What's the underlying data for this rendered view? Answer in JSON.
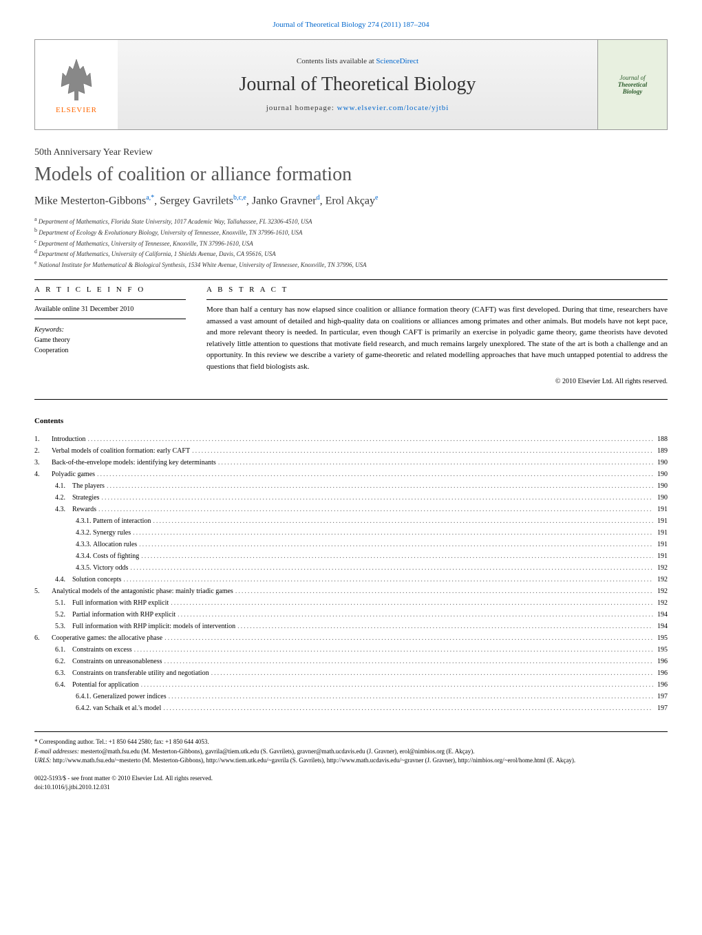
{
  "top_link": "Journal of Theoretical Biology 274 (2011) 187–204",
  "header": {
    "contents_text": "Contents lists available at ",
    "contents_link": "ScienceDirect",
    "journal_title": "Journal of Theoretical Biology",
    "homepage_text": "journal homepage: ",
    "homepage_link": "www.elsevier.com/locate/yjtbi",
    "elsevier_label": "ELSEVIER",
    "cover_line1": "Journal of",
    "cover_line2": "Theoretical",
    "cover_line3": "Biology"
  },
  "review_type": "50th Anniversary Year Review",
  "article_title": "Models of coalition or alliance formation",
  "authors": [
    {
      "name": "Mike Mesterton-Gibbons",
      "affil": "a,*"
    },
    {
      "name": "Sergey Gavrilets",
      "affil": "b,c,e"
    },
    {
      "name": "Janko Gravner",
      "affil": "d"
    },
    {
      "name": "Erol Akçay",
      "affil": "e"
    }
  ],
  "affiliations": [
    {
      "sup": "a",
      "text": "Department of Mathematics, Florida State University, 1017 Academic Way, Tallahassee, FL 32306-4510, USA"
    },
    {
      "sup": "b",
      "text": "Department of Ecology & Evolutionary Biology, University of Tennessee, Knoxville, TN 37996-1610, USA"
    },
    {
      "sup": "c",
      "text": "Department of Mathematics, University of Tennessee, Knoxville, TN 37996-1610, USA"
    },
    {
      "sup": "d",
      "text": "Department of Mathematics, University of California, 1 Shields Avenue, Davis, CA 95616, USA"
    },
    {
      "sup": "e",
      "text": "National Institute for Mathematical & Biological Synthesis, 1534 White Avenue, University of Tennessee, Knoxville, TN 37996, USA"
    }
  ],
  "info_heading": "A R T I C L E   I N F O",
  "abstract_heading": "A B S T R A C T",
  "available_online": "Available online 31 December 2010",
  "keywords_label": "Keywords:",
  "keywords": [
    "Game theory",
    "Cooperation"
  ],
  "abstract_text": "More than half a century has now elapsed since coalition or alliance formation theory (CAFT) was first developed. During that time, researchers have amassed a vast amount of detailed and high-quality data on coalitions or alliances among primates and other animals. But models have not kept pace, and more relevant theory is needed. In particular, even though CAFT is primarily an exercise in polyadic game theory, game theorists have devoted relatively little attention to questions that motivate field research, and much remains largely unexplored. The state of the art is both a challenge and an opportunity. In this review we describe a variety of game-theoretic and related modelling approaches that have much untapped potential to address the questions that field biologists ask.",
  "copyright": "© 2010 Elsevier Ltd. All rights reserved.",
  "contents_heading": "Contents",
  "toc": [
    {
      "num": "1.",
      "title": "Introduction",
      "page": "188",
      "indent": 0
    },
    {
      "num": "2.",
      "title": "Verbal models of coalition formation: early CAFT",
      "page": "189",
      "indent": 0
    },
    {
      "num": "3.",
      "title": "Back-of-the-envelope models: identifying key determinants",
      "page": "190",
      "indent": 0
    },
    {
      "num": "4.",
      "title": "Polyadic games",
      "page": "190",
      "indent": 0
    },
    {
      "num": "4.1.",
      "title": "The players",
      "page": "190",
      "indent": 1
    },
    {
      "num": "4.2.",
      "title": "Strategies",
      "page": "190",
      "indent": 1
    },
    {
      "num": "4.3.",
      "title": "Rewards",
      "page": "191",
      "indent": 1
    },
    {
      "num": "4.3.1.",
      "title": "Pattern of interaction",
      "page": "191",
      "indent": 2
    },
    {
      "num": "4.3.2.",
      "title": "Synergy rules",
      "page": "191",
      "indent": 2
    },
    {
      "num": "4.3.3.",
      "title": "Allocation rules",
      "page": "191",
      "indent": 2
    },
    {
      "num": "4.3.4.",
      "title": "Costs of fighting",
      "page": "191",
      "indent": 2
    },
    {
      "num": "4.3.5.",
      "title": "Victory odds",
      "page": "192",
      "indent": 2
    },
    {
      "num": "4.4.",
      "title": "Solution concepts",
      "page": "192",
      "indent": 1
    },
    {
      "num": "5.",
      "title": "Analytical models of the antagonistic phase: mainly triadic games",
      "page": "192",
      "indent": 0
    },
    {
      "num": "5.1.",
      "title": "Full information with RHP explicit",
      "page": "192",
      "indent": 1
    },
    {
      "num": "5.2.",
      "title": "Partial information with RHP explicit",
      "page": "194",
      "indent": 1
    },
    {
      "num": "5.3.",
      "title": "Full information with RHP implicit: models of intervention",
      "page": "194",
      "indent": 1
    },
    {
      "num": "6.",
      "title": "Cooperative games: the allocative phase",
      "page": "195",
      "indent": 0
    },
    {
      "num": "6.1.",
      "title": "Constraints on excess",
      "page": "195",
      "indent": 1
    },
    {
      "num": "6.2.",
      "title": "Constraints on unreasonableness",
      "page": "196",
      "indent": 1
    },
    {
      "num": "6.3.",
      "title": "Constraints on transferable utility and negotiation",
      "page": "196",
      "indent": 1
    },
    {
      "num": "6.4.",
      "title": "Potential for application",
      "page": "196",
      "indent": 1
    },
    {
      "num": "6.4.1.",
      "title": "Generalized power indices",
      "page": "197",
      "indent": 2
    },
    {
      "num": "6.4.2.",
      "title": "van Schaik et al.'s model",
      "page": "197",
      "indent": 2
    }
  ],
  "footer": {
    "corresponding": "* Corresponding author. Tel.: +1 850 644 2580; fax: +1 850 644 4053.",
    "email_label": "E-mail addresses:",
    "emails": " mesterto@math.fsu.edu (M. Mesterton-Gibbons), gavrila@tiem.utk.edu (S. Gavrilets), gravner@math.ucdavis.edu (J. Gravner), erol@nimbios.org (E. Akçay).",
    "urls_label": "URLS:",
    "urls": " http://www.math.fsu.edu/~mesterto (M. Mesterton-Gibbons), http://www.tiem.utk.edu/~gavrila (S. Gavrilets), http://www.math.ucdavis.edu/~gravner (J. Gravner), http://nimbios.org/~erol/home.html (E. Akçay).",
    "issn": "0022-5193/$ - see front matter © 2010 Elsevier Ltd. All rights reserved.",
    "doi": "doi:10.1016/j.jtbi.2010.12.031"
  }
}
